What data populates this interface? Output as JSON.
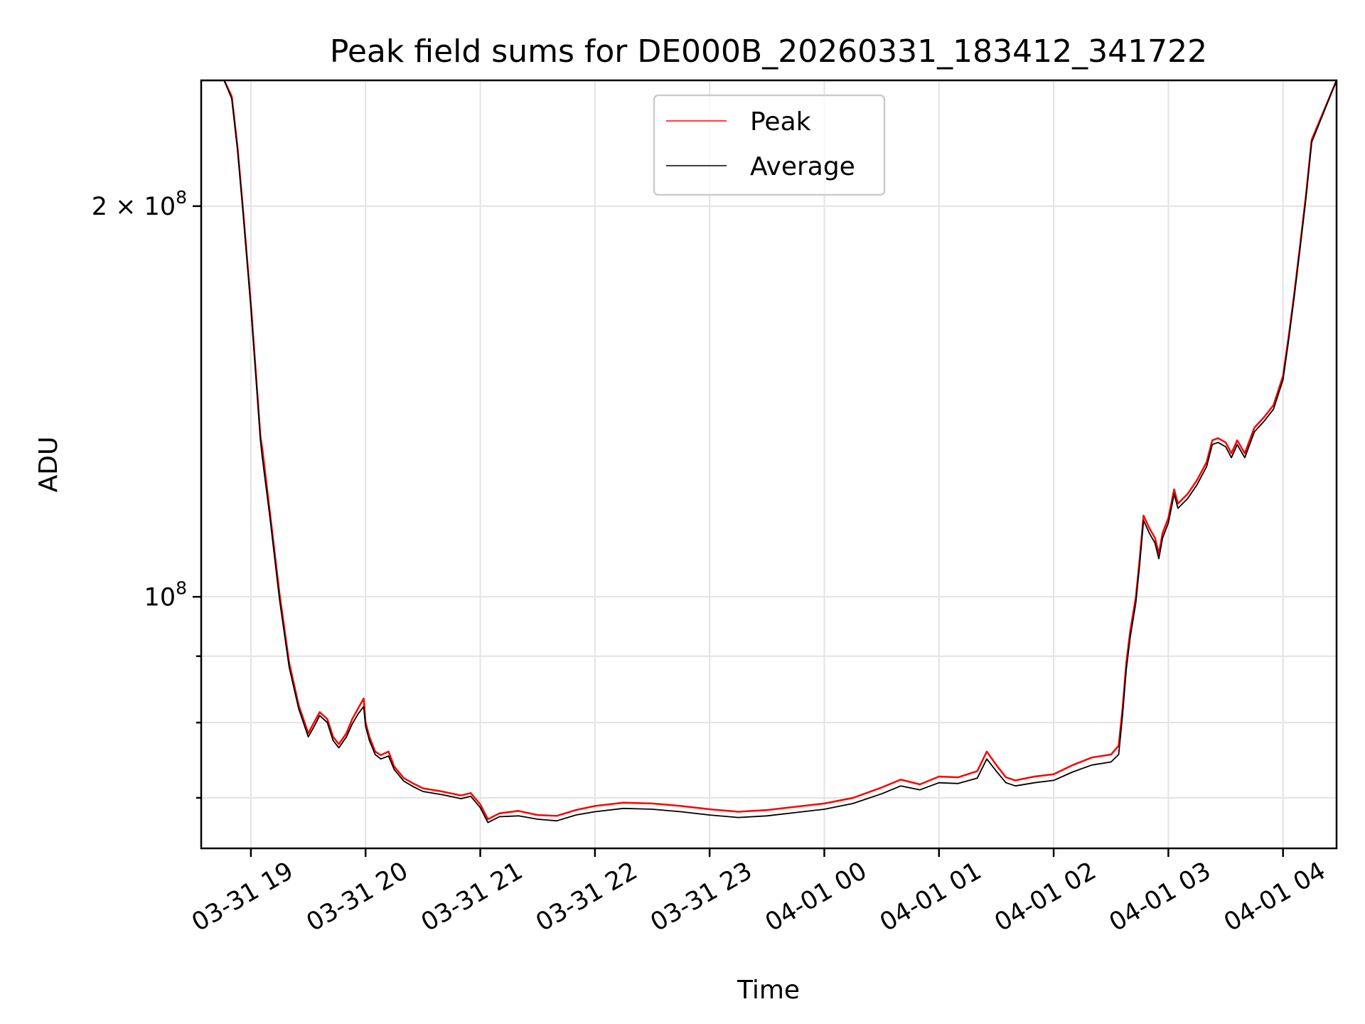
{
  "chart_data": {
    "type": "line",
    "title": "Peak field sums for DE000B_20260331_183412_341722",
    "xlabel": "Time",
    "ylabel": "ADU",
    "yscale": "log",
    "grid": true,
    "legend_position": "upper center",
    "xlim": [
      "2026-03-31 18:34",
      "2026-04-01 04:28"
    ],
    "ylim": [
      64000000,
      250000000
    ],
    "x_ticks": [
      {
        "value": "2026-03-31 19:00",
        "label": "03-31 19"
      },
      {
        "value": "2026-03-31 20:00",
        "label": "03-31 20"
      },
      {
        "value": "2026-03-31 21:00",
        "label": "03-31 21"
      },
      {
        "value": "2026-03-31 22:00",
        "label": "03-31 22"
      },
      {
        "value": "2026-03-31 23:00",
        "label": "03-31 23"
      },
      {
        "value": "2026-04-01 00:00",
        "label": "04-01 00"
      },
      {
        "value": "2026-04-01 01:00",
        "label": "04-01 01"
      },
      {
        "value": "2026-04-01 02:00",
        "label": "04-01 02"
      },
      {
        "value": "2026-04-01 03:00",
        "label": "04-01 03"
      },
      {
        "value": "2026-04-01 04:00",
        "label": "04-01 04"
      }
    ],
    "y_major_ticks": [
      {
        "value": 100000000,
        "base": "10",
        "exp": "8",
        "mult": ""
      },
      {
        "value": 200000000,
        "base": "10",
        "exp": "8",
        "mult": "2 × "
      }
    ],
    "y_minor_ticks": [
      70000000,
      80000000,
      90000000
    ],
    "series": [
      {
        "name": "Peak",
        "color": "#ff0000",
        "x": [
          "2026-03-31 18:34",
          "2026-03-31 18:46",
          "2026-03-31 18:50",
          "2026-03-31 18:53",
          "2026-03-31 18:56",
          "2026-03-31 19:00",
          "2026-03-31 19:03",
          "2026-03-31 19:05",
          "2026-03-31 19:06",
          "2026-03-31 19:10",
          "2026-03-31 19:15",
          "2026-03-31 19:20",
          "2026-03-31 19:25",
          "2026-03-31 19:30",
          "2026-03-31 19:33",
          "2026-03-31 19:36",
          "2026-03-31 19:40",
          "2026-03-31 19:43",
          "2026-03-31 19:46",
          "2026-03-31 19:50",
          "2026-03-31 19:53",
          "2026-03-31 19:56",
          "2026-03-31 19:59",
          "2026-03-31 20:00",
          "2026-03-31 20:02",
          "2026-03-31 20:05",
          "2026-03-31 20:08",
          "2026-03-31 20:12",
          "2026-03-31 20:15",
          "2026-03-31 20:20",
          "2026-03-31 20:25",
          "2026-03-31 20:30",
          "2026-03-31 20:40",
          "2026-03-31 20:50",
          "2026-03-31 20:55",
          "2026-03-31 21:00",
          "2026-03-31 21:04",
          "2026-03-31 21:10",
          "2026-03-31 21:20",
          "2026-03-31 21:30",
          "2026-03-31 21:40",
          "2026-03-31 21:50",
          "2026-03-31 22:00",
          "2026-03-31 22:15",
          "2026-03-31 22:30",
          "2026-03-31 22:45",
          "2026-03-31 23:00",
          "2026-03-31 23:15",
          "2026-03-31 23:30",
          "2026-03-31 23:45",
          "2026-04-01 00:00",
          "2026-04-01 00:15",
          "2026-04-01 00:30",
          "2026-04-01 00:40",
          "2026-04-01 00:50",
          "2026-04-01 01:00",
          "2026-04-01 01:10",
          "2026-04-01 01:20",
          "2026-04-01 01:25",
          "2026-04-01 01:30",
          "2026-04-01 01:35",
          "2026-04-01 01:40",
          "2026-04-01 01:50",
          "2026-04-01 02:00",
          "2026-04-01 02:10",
          "2026-04-01 02:20",
          "2026-04-01 02:30",
          "2026-04-01 02:34",
          "2026-04-01 02:36",
          "2026-04-01 02:38",
          "2026-04-01 02:40",
          "2026-04-01 02:43",
          "2026-04-01 02:45",
          "2026-04-01 02:47",
          "2026-04-01 02:50",
          "2026-04-01 02:53",
          "2026-04-01 02:55",
          "2026-04-01 02:57",
          "2026-04-01 03:00",
          "2026-04-01 03:03",
          "2026-04-01 03:05",
          "2026-04-01 03:10",
          "2026-04-01 03:15",
          "2026-04-01 03:20",
          "2026-04-01 03:23",
          "2026-04-01 03:26",
          "2026-04-01 03:30",
          "2026-04-01 03:33",
          "2026-04-01 03:36",
          "2026-04-01 03:40",
          "2026-04-01 03:45",
          "2026-04-01 03:50",
          "2026-04-01 03:55",
          "2026-04-01 04:00",
          "2026-04-01 04:03",
          "2026-04-01 04:06",
          "2026-04-01 04:09",
          "2026-04-01 04:12",
          "2026-04-01 04:15",
          "2026-04-01 04:28"
        ],
        "values": [
          250000000,
          250000000,
          243000000,
          222000000,
          198000000,
          168000000,
          146000000,
          133000000,
          130000000,
          116000000,
          100500000,
          89000000,
          82500000,
          78500000,
          80000000,
          81500000,
          80500000,
          78000000,
          77000000,
          78500000,
          80500000,
          82000000,
          83500000,
          80000000,
          78000000,
          76000000,
          75500000,
          76000000,
          74000000,
          72500000,
          71800000,
          71200000,
          70800000,
          70300000,
          70600000,
          69200000,
          67400000,
          68100000,
          68400000,
          67900000,
          67800000,
          68500000,
          69000000,
          69400000,
          69300000,
          69000000,
          68600000,
          68300000,
          68500000,
          68900000,
          69300000,
          70000000,
          71300000,
          72300000,
          71700000,
          72700000,
          72600000,
          73400000,
          76000000,
          74200000,
          72600000,
          72200000,
          72700000,
          73000000,
          74200000,
          75200000,
          75600000,
          76800000,
          82000000,
          89000000,
          94000000,
          100000000,
          107000000,
          115500000,
          113000000,
          111000000,
          108000000,
          112000000,
          115000000,
          121000000,
          118000000,
          120000000,
          123000000,
          127000000,
          132000000,
          132500000,
          131500000,
          129000000,
          132000000,
          129000000,
          135000000,
          137500000,
          140500000,
          148000000,
          159000000,
          172000000,
          187000000,
          204000000,
          225000000,
          250000000
        ]
      },
      {
        "name": "Average",
        "color": "#000000",
        "x": [
          "2026-03-31 18:34",
          "2026-03-31 18:46",
          "2026-03-31 18:50",
          "2026-03-31 18:53",
          "2026-03-31 18:56",
          "2026-03-31 19:00",
          "2026-03-31 19:03",
          "2026-03-31 19:05",
          "2026-03-31 19:06",
          "2026-03-31 19:10",
          "2026-03-31 19:15",
          "2026-03-31 19:20",
          "2026-03-31 19:25",
          "2026-03-31 19:30",
          "2026-03-31 19:33",
          "2026-03-31 19:36",
          "2026-03-31 19:40",
          "2026-03-31 19:43",
          "2026-03-31 19:46",
          "2026-03-31 19:50",
          "2026-03-31 19:53",
          "2026-03-31 19:56",
          "2026-03-31 19:59",
          "2026-03-31 20:00",
          "2026-03-31 20:02",
          "2026-03-31 20:05",
          "2026-03-31 20:08",
          "2026-03-31 20:12",
          "2026-03-31 20:15",
          "2026-03-31 20:20",
          "2026-03-31 20:25",
          "2026-03-31 20:30",
          "2026-03-31 20:40",
          "2026-03-31 20:50",
          "2026-03-31 20:55",
          "2026-03-31 21:00",
          "2026-03-31 21:04",
          "2026-03-31 21:10",
          "2026-03-31 21:20",
          "2026-03-31 21:30",
          "2026-03-31 21:40",
          "2026-03-31 21:50",
          "2026-03-31 22:00",
          "2026-03-31 22:15",
          "2026-03-31 22:30",
          "2026-03-31 22:45",
          "2026-03-31 23:00",
          "2026-03-31 23:15",
          "2026-03-31 23:30",
          "2026-03-31 23:45",
          "2026-04-01 00:00",
          "2026-04-01 00:15",
          "2026-04-01 00:30",
          "2026-04-01 00:40",
          "2026-04-01 00:50",
          "2026-04-01 01:00",
          "2026-04-01 01:10",
          "2026-04-01 01:20",
          "2026-04-01 01:25",
          "2026-04-01 01:30",
          "2026-04-01 01:35",
          "2026-04-01 01:40",
          "2026-04-01 01:50",
          "2026-04-01 02:00",
          "2026-04-01 02:10",
          "2026-04-01 02:20",
          "2026-04-01 02:30",
          "2026-04-01 02:34",
          "2026-04-01 02:36",
          "2026-04-01 02:38",
          "2026-04-01 02:40",
          "2026-04-01 02:43",
          "2026-04-01 02:45",
          "2026-04-01 02:47",
          "2026-04-01 02:50",
          "2026-04-01 02:53",
          "2026-04-01 02:55",
          "2026-04-01 02:57",
          "2026-04-01 03:00",
          "2026-04-01 03:03",
          "2026-04-01 03:05",
          "2026-04-01 03:10",
          "2026-04-01 03:15",
          "2026-04-01 03:20",
          "2026-04-01 03:23",
          "2026-04-01 03:26",
          "2026-04-01 03:30",
          "2026-04-01 03:33",
          "2026-04-01 03:36",
          "2026-04-01 03:40",
          "2026-04-01 03:45",
          "2026-04-01 03:50",
          "2026-04-01 03:55",
          "2026-04-01 04:00",
          "2026-04-01 04:03",
          "2026-04-01 04:06",
          "2026-04-01 04:09",
          "2026-04-01 04:12",
          "2026-04-01 04:15",
          "2026-04-01 04:28"
        ],
        "values": [
          250000000,
          250000000,
          242000000,
          221000000,
          197000000,
          167000000,
          145000000,
          132000000,
          128000000,
          115000000,
          99500000,
          88300000,
          82000000,
          78000000,
          79400000,
          81000000,
          80000000,
          77500000,
          76500000,
          78000000,
          79800000,
          81200000,
          82300000,
          79500000,
          77500000,
          75600000,
          75000000,
          75400000,
          73600000,
          72100000,
          71400000,
          70800000,
          70400000,
          69900000,
          70200000,
          68800000,
          67000000,
          67700000,
          67800000,
          67400000,
          67200000,
          67900000,
          68300000,
          68700000,
          68600000,
          68300000,
          67900000,
          67600000,
          67800000,
          68200000,
          68600000,
          69300000,
          70500000,
          71500000,
          71000000,
          71900000,
          71800000,
          72500000,
          75000000,
          73400000,
          71900000,
          71500000,
          71900000,
          72200000,
          73300000,
          74200000,
          74600000,
          75600000,
          81000000,
          88000000,
          93000000,
          99000000,
          106000000,
          114500000,
          112000000,
          110000000,
          107000000,
          111000000,
          114000000,
          120000000,
          117000000,
          119000000,
          122000000,
          126000000,
          131000000,
          131500000,
          130500000,
          128000000,
          131000000,
          128000000,
          134000000,
          136500000,
          139500000,
          147000000,
          158000000,
          171000000,
          186000000,
          203000000,
          224000000,
          250000000
        ]
      }
    ]
  }
}
